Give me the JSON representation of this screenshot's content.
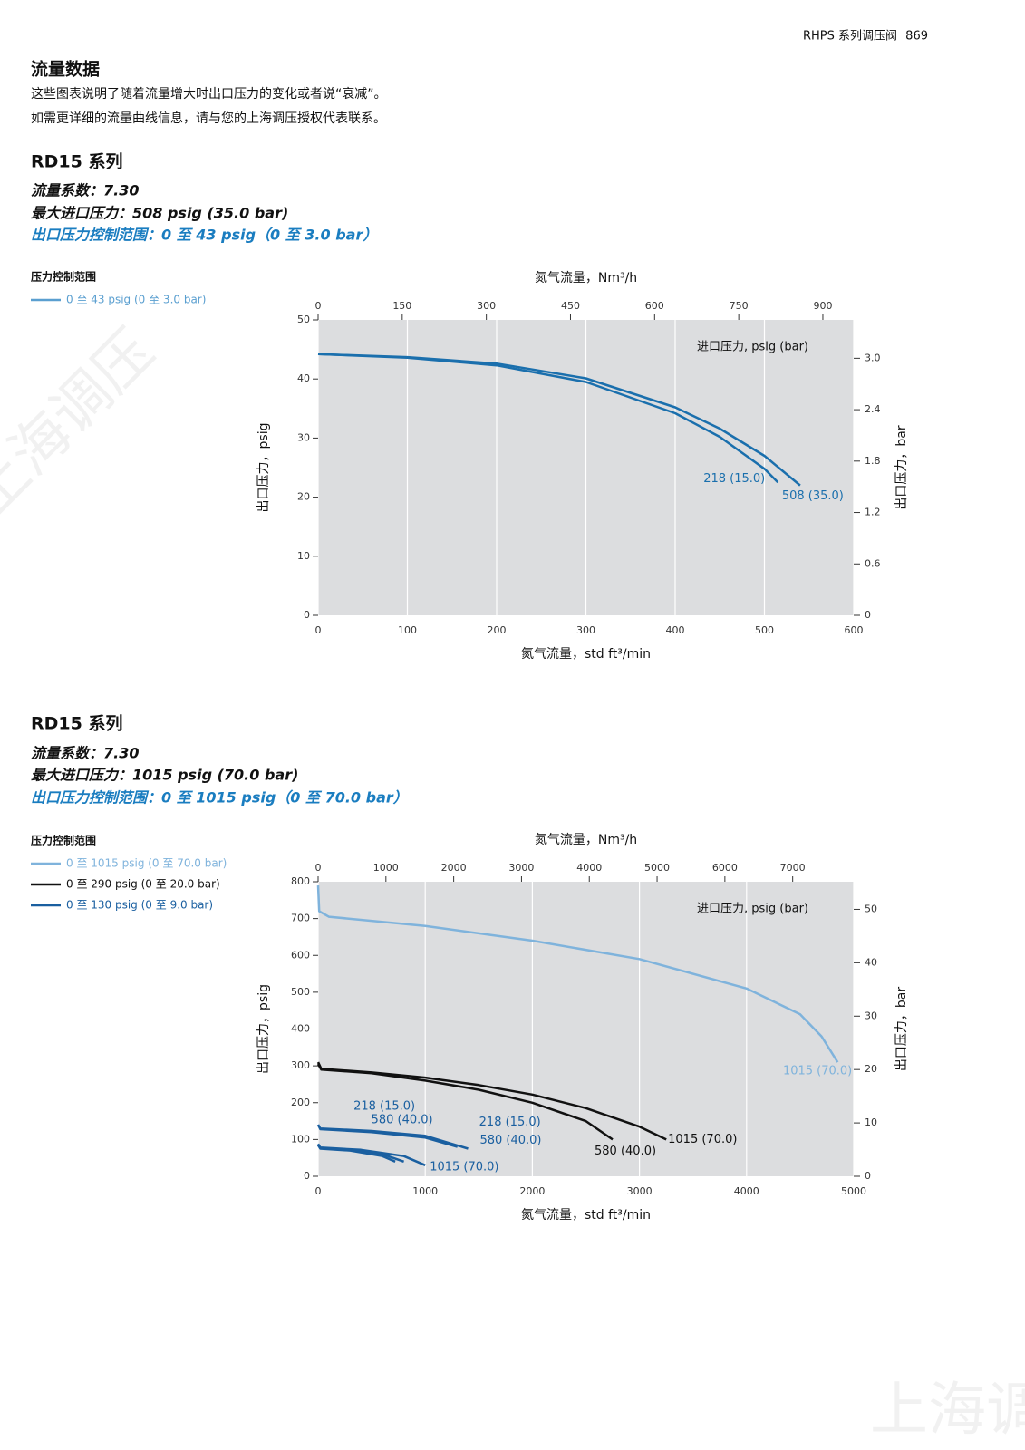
{
  "header": {
    "series": "RHPS 系列调压阀",
    "page": "869"
  },
  "section": {
    "title": "流量数据",
    "lines": [
      "这些图表说明了随着流量增大时出口压力的变化或者说“衰减”。",
      "如需更详细的流量曲线信息，请与您的上海调压授权代表联系。"
    ]
  },
  "blocks": [
    {
      "title": "RD15 系列",
      "specs": [
        "流量系数：7.30",
        "最大进口压力：508 psig (35.0 bar)"
      ],
      "range": "出口压力控制范围：0 至 43 psig（0 至 3.0 bar）"
    },
    {
      "title": "RD15 系列",
      "specs": [
        "流量系数：7.30",
        "最大进口压力：1015 psig (70.0 bar)"
      ],
      "range": "出口压力控制范围：0 至 1015 psig（0 至 70.0 bar）"
    }
  ],
  "watermark": "上海调压",
  "chart_data": [
    {
      "type": "line",
      "legend": {
        "title": "压力控制范围",
        "entries": [
          {
            "label": "0 至 43 psig (0 至 3.0 bar)",
            "color": "#5a9fd0"
          }
        ]
      },
      "x_label": "氮气流量，std ft³/min",
      "x2_label": "氮气流量，Nm³/h",
      "y_label": "出口压力，psig",
      "y2_label": "出口压力，bar",
      "annotation": "进口压力, psig (bar)",
      "xlim": [
        0,
        600
      ],
      "xticks": [
        0,
        100,
        200,
        300,
        400,
        500,
        600
      ],
      "x2lim": [
        0,
        955
      ],
      "x2ticks": [
        0,
        150,
        300,
        450,
        600,
        750,
        900
      ],
      "ylim": [
        0,
        50
      ],
      "yticks": [
        0,
        10,
        20,
        30,
        40,
        50
      ],
      "y2lim": [
        0,
        3.448
      ],
      "y2ticks": [
        0,
        0.6,
        1.2,
        1.8,
        2.4,
        {
          "value": 3,
          "label": "3.0"
        }
      ],
      "grid": true,
      "series": [
        {
          "name": "218 (15.0)",
          "color": "#1a6fad",
          "x": [
            0,
            100,
            200,
            300,
            400,
            450,
            500,
            515
          ],
          "values": [
            44.2,
            43.6,
            42.3,
            39.5,
            34.2,
            30.2,
            24.8,
            22.5
          ]
        },
        {
          "name": "508 (35.0)",
          "color": "#1a6fad",
          "x": [
            0,
            100,
            200,
            300,
            400,
            450,
            500,
            540
          ],
          "values": [
            44.2,
            43.7,
            42.6,
            40.1,
            35.2,
            31.6,
            27,
            22
          ]
        }
      ]
    },
    {
      "type": "line",
      "legend": {
        "title": "压力控制范围",
        "entries": [
          {
            "label": "0 至 1015 psig (0 至 70.0 bar)",
            "color": "#7fb3dc"
          },
          {
            "label": "0 至 290 psig (0 至 20.0 bar)",
            "color": "#111111"
          },
          {
            "label": "0 至 130 psig (0 至 9.0 bar)",
            "color": "#1a5fa0"
          }
        ]
      },
      "x_label": "氮气流量，std ft³/min",
      "x2_label": "氮气流量，Nm³/h",
      "y_label": "出口压力，psig",
      "y2_label": "出口压力，bar",
      "annotation": "进口压力, psig (bar)",
      "xlim": [
        0,
        5000
      ],
      "xticks": [
        0,
        1000,
        2000,
        3000,
        4000,
        5000
      ],
      "x2lim": [
        0,
        7900
      ],
      "x2ticks": [
        0,
        1000,
        2000,
        3000,
        4000,
        5000,
        6000,
        7000
      ],
      "ylim": [
        0,
        800
      ],
      "yticks": [
        0,
        100,
        200,
        300,
        400,
        500,
        600,
        700,
        800
      ],
      "y2lim": [
        0,
        55.17
      ],
      "y2ticks": [
        0,
        10,
        20,
        30,
        40,
        50
      ],
      "grid": true,
      "series": [
        {
          "name": "1015 (70.0)",
          "color": "#7fb3dc",
          "x": [
            0,
            10,
            100,
            1000,
            2000,
            3000,
            4000,
            4500,
            4700,
            4850
          ],
          "values": [
            790,
            720,
            705,
            680,
            640,
            590,
            510,
            440,
            380,
            310
          ]
        },
        {
          "name": "580 (40.0)",
          "color": "#111111",
          "x": [
            0,
            30,
            500,
            1000,
            1500,
            2000,
            2500,
            2750
          ],
          "values": [
            305,
            290,
            280,
            260,
            235,
            200,
            150,
            100
          ]
        },
        {
          "name": "1015 (70.0)",
          "color": "#111111",
          "x": [
            0,
            30,
            500,
            1000,
            1500,
            2000,
            2500,
            3000,
            3250
          ],
          "values": [
            310,
            292,
            282,
            268,
            248,
            222,
            185,
            135,
            100
          ]
        },
        {
          "name": "218 (15.0)",
          "color": "#1a5fa0",
          "x": [
            0,
            20,
            500,
            1000,
            1300
          ],
          "values": [
            140,
            128,
            120,
            105,
            80
          ]
        },
        {
          "name": "580 (40.0)",
          "color": "#1a5fa0",
          "x": [
            0,
            20,
            500,
            1000,
            1400
          ],
          "values": [
            140,
            130,
            123,
            110,
            75
          ]
        },
        {
          "name": "218 (15.0)",
          "color": "#1a5fa0",
          "x": [
            0,
            20,
            300,
            600,
            720
          ],
          "values": [
            85,
            75,
            70,
            55,
            40
          ]
        },
        {
          "name": "580 (40.0)",
          "color": "#1a5fa0",
          "x": [
            0,
            20,
            300,
            600,
            800
          ],
          "values": [
            85,
            76,
            72,
            60,
            40
          ]
        },
        {
          "name": "1015 (70.0)",
          "color": "#1a5fa0",
          "x": [
            0,
            20,
            400,
            800,
            1000
          ],
          "values": [
            88,
            78,
            72,
            55,
            30
          ]
        }
      ]
    }
  ]
}
